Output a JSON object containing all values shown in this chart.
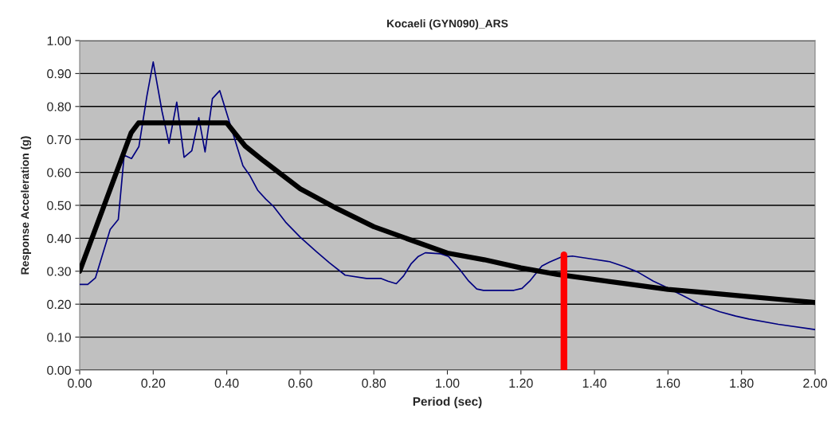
{
  "chart_data": {
    "type": "line",
    "title": "Kocaeli (GYN090)_ARS",
    "xlabel": "Period (sec)",
    "ylabel": "Response Acceleration (g)",
    "xlim": [
      0,
      2
    ],
    "ylim": [
      0,
      1
    ],
    "xticks": [
      {
        "value": 0,
        "label": "0.00"
      },
      {
        "value": 0.2,
        "label": "0.20"
      },
      {
        "value": 0.4,
        "label": "0.40"
      },
      {
        "value": 0.6,
        "label": "0.60"
      },
      {
        "value": 0.8,
        "label": "0.80"
      },
      {
        "value": 1.0,
        "label": "1.00"
      },
      {
        "value": 1.2,
        "label": "1.20"
      },
      {
        "value": 1.4,
        "label": "1.40"
      },
      {
        "value": 1.6,
        "label": "1.60"
      },
      {
        "value": 1.8,
        "label": "1.80"
      },
      {
        "value": 2.0,
        "label": "2.00"
      }
    ],
    "yticks": [
      {
        "value": 0,
        "label": "0.00"
      },
      {
        "value": 0.1,
        "label": "0.10"
      },
      {
        "value": 0.2,
        "label": "0.20"
      },
      {
        "value": 0.3,
        "label": "0.30"
      },
      {
        "value": 0.4,
        "label": "0.40"
      },
      {
        "value": 0.5,
        "label": "0.50"
      },
      {
        "value": 0.6,
        "label": "0.60"
      },
      {
        "value": 0.7,
        "label": "0.70"
      },
      {
        "value": 0.8,
        "label": "0.80"
      },
      {
        "value": 0.9,
        "label": "0.90"
      },
      {
        "value": 1.0,
        "label": "1.00"
      }
    ],
    "grid": "y",
    "legend": false,
    "series": [
      {
        "color": "#000080",
        "x": [
          0,
          0.022,
          0.043,
          0.083,
          0.105,
          0.121,
          0.141,
          0.161,
          0.183,
          0.2,
          0.224,
          0.243,
          0.264,
          0.284,
          0.305,
          0.324,
          0.341,
          0.361,
          0.381,
          0.444,
          0.462,
          0.484,
          0.506,
          0.527,
          0.56,
          0.6,
          0.643,
          0.679,
          0.722,
          0.78,
          0.82,
          0.838,
          0.861,
          0.881,
          0.901,
          0.921,
          0.94,
          0.982,
          1.003,
          1.033,
          1.058,
          1.08,
          1.098,
          1.181,
          1.203,
          1.224,
          1.257,
          1.278,
          1.307,
          1.34,
          1.394,
          1.441,
          1.481,
          1.517,
          1.56,
          1.589,
          1.647,
          1.69,
          1.741,
          1.784,
          1.82,
          1.9,
          2.0
        ],
        "values": [
          0.26,
          0.26,
          0.28,
          0.427,
          0.457,
          0.652,
          0.642,
          0.678,
          0.833,
          0.935,
          0.785,
          0.688,
          0.813,
          0.646,
          0.666,
          0.766,
          0.662,
          0.824,
          0.848,
          0.62,
          0.592,
          0.546,
          0.519,
          0.497,
          0.449,
          0.403,
          0.36,
          0.326,
          0.288,
          0.278,
          0.278,
          0.27,
          0.262,
          0.286,
          0.322,
          0.345,
          0.356,
          0.353,
          0.345,
          0.306,
          0.27,
          0.246,
          0.242,
          0.242,
          0.248,
          0.27,
          0.316,
          0.328,
          0.342,
          0.346,
          0.337,
          0.329,
          0.314,
          0.298,
          0.27,
          0.255,
          0.222,
          0.197,
          0.177,
          0.164,
          0.155,
          0.139,
          0.123
        ]
      },
      {
        "color": "#000000",
        "x": [
          0,
          0.1,
          0.12,
          0.14,
          0.16,
          0.4,
          0.45,
          0.5,
          0.6,
          0.7,
          0.8,
          0.9,
          1.0,
          1.1,
          1.2,
          1.3,
          1.4,
          1.5,
          1.6,
          1.7,
          1.8,
          1.9,
          2.0
        ],
        "values": [
          0.3,
          0.6,
          0.66,
          0.72,
          0.75,
          0.75,
          0.68,
          0.635,
          0.55,
          0.49,
          0.435,
          0.395,
          0.355,
          0.335,
          0.31,
          0.29,
          0.275,
          0.26,
          0.245,
          0.235,
          0.225,
          0.215,
          0.205
        ]
      },
      {
        "color": "#ff0000",
        "x": [
          1.317,
          1.317
        ],
        "values": [
          0,
          0.35
        ]
      }
    ]
  }
}
